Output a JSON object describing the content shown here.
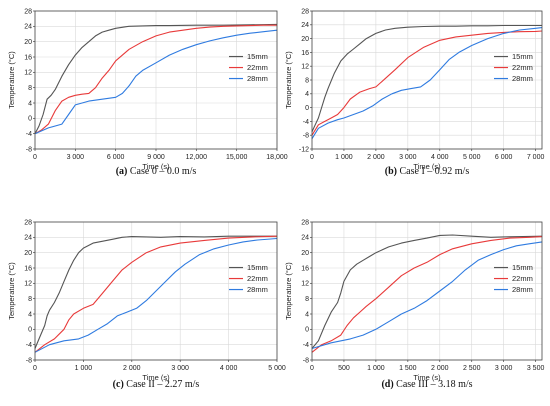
{
  "chart_data": [
    {
      "type": "line",
      "caption_label": "(a)",
      "caption_text": "Case 0 – 0.0 m/s",
      "xlabel": "Time (s)",
      "ylabel": "Temperature (°C)",
      "xlim": [
        0,
        18000
      ],
      "ylim": [
        -8,
        28
      ],
      "xticks": [
        0,
        3000,
        6000,
        9000,
        12000,
        15000,
        18000
      ],
      "xtick_labels": [
        "0",
        "3 000",
        "6 000",
        "9 000",
        "12,000",
        "15,000",
        "18,000"
      ],
      "yticks": [
        -8,
        -4,
        0,
        4,
        8,
        12,
        16,
        20,
        24,
        28
      ],
      "ytick_labels": [
        "-8",
        "-4",
        "0",
        "4",
        "8",
        "12",
        "16",
        "20",
        "24",
        "28"
      ],
      "grid": true,
      "legend_position": "right-middle",
      "series": [
        {
          "name": "15mm",
          "color": "#555555",
          "x": [
            0,
            300,
            600,
            900,
            1200,
            1500,
            2000,
            2500,
            3000,
            3500,
            4000,
            4500,
            5000,
            5500,
            6000,
            7000,
            8000,
            9000,
            10000,
            12000,
            14000,
            16000,
            18000
          ],
          "y": [
            -4,
            -2,
            1,
            5,
            6,
            7.5,
            11,
            14,
            16.5,
            18.5,
            20,
            21.5,
            22.5,
            23,
            23.5,
            24,
            24.1,
            24.2,
            24.2,
            24.3,
            24.3,
            24.4,
            24.5
          ]
        },
        {
          "name": "22mm",
          "color": "#e83a3a",
          "x": [
            0,
            500,
            1000,
            1500,
            2000,
            2500,
            3000,
            3500,
            4000,
            4500,
            5000,
            5500,
            6000,
            7000,
            8000,
            9000,
            10000,
            11000,
            12000,
            13000,
            14000,
            15000,
            16000,
            17000,
            18000
          ],
          "y": [
            -4,
            -3,
            -1.5,
            2,
            4.5,
            5.5,
            6,
            6.3,
            6.5,
            8,
            10.5,
            12.5,
            15,
            18,
            20,
            21.5,
            22.5,
            23,
            23.5,
            23.8,
            24,
            24.1,
            24.2,
            24.3,
            24.3
          ]
        },
        {
          "name": "28mm",
          "color": "#2f7be0",
          "x": [
            0,
            1000,
            2000,
            2500,
            3000,
            3500,
            4000,
            5000,
            6000,
            6500,
            7000,
            7500,
            8000,
            9000,
            10000,
            11000,
            12000,
            13000,
            14000,
            15000,
            16000,
            17000,
            18000
          ],
          "y": [
            -4,
            -2.5,
            -1.5,
            1,
            3.5,
            4,
            4.5,
            5,
            5.5,
            6.5,
            8.5,
            11,
            12.5,
            14.5,
            16.5,
            18,
            19.2,
            20.2,
            21,
            21.7,
            22.2,
            22.6,
            23
          ]
        }
      ]
    },
    {
      "type": "line",
      "caption_label": "(b)",
      "caption_text": "Case I – 0.92 m/s",
      "xlabel": "Time (s)",
      "ylabel": "Temperature (°C)",
      "xlim": [
        0,
        7200
      ],
      "ylim": [
        -12,
        28
      ],
      "xticks": [
        0,
        1000,
        2000,
        3000,
        4000,
        5000,
        6000,
        7000
      ],
      "xtick_labels": [
        "0",
        "1 000",
        "2 000",
        "3 000",
        "4 000",
        "5 000",
        "6 000",
        "7 000"
      ],
      "yticks": [
        -12,
        -8,
        -4,
        0,
        4,
        8,
        12,
        16,
        20,
        24,
        28
      ],
      "ytick_labels": [
        "-12",
        "-8",
        "-4",
        "0",
        "4",
        "8",
        "12",
        "16",
        "20",
        "24",
        "28"
      ],
      "grid": true,
      "legend_position": "right-middle",
      "series": [
        {
          "name": "15mm",
          "color": "#555555",
          "x": [
            0,
            100,
            200,
            300,
            400,
            500,
            700,
            900,
            1100,
            1300,
            1500,
            1700,
            2000,
            2300,
            2600,
            3000,
            3500,
            4000,
            4500,
            5000,
            5500,
            6000,
            6500,
            7000,
            7200
          ],
          "y": [
            -7,
            -5,
            -3,
            0,
            3,
            5.5,
            10,
            13.5,
            15.5,
            17,
            18.5,
            20,
            21.5,
            22.5,
            23,
            23.3,
            23.5,
            23.6,
            23.6,
            23.7,
            23.7,
            23.8,
            23.8,
            23.8,
            23.8
          ]
        },
        {
          "name": "22mm",
          "color": "#e83a3a",
          "x": [
            0,
            200,
            400,
            600,
            800,
            1000,
            1200,
            1500,
            1800,
            2000,
            2300,
            2600,
            3000,
            3500,
            4000,
            4500,
            5000,
            5500,
            6000,
            6500,
            7000,
            7200
          ],
          "y": [
            -8,
            -5,
            -4,
            -3,
            -2,
            0,
            2.5,
            4.5,
            5.5,
            6,
            8.5,
            11,
            14.5,
            17.5,
            19.5,
            20.5,
            21,
            21.5,
            21.8,
            22,
            22.1,
            22.2
          ]
        },
        {
          "name": "28mm",
          "color": "#2f7be0",
          "x": [
            0,
            200,
            500,
            800,
            1000,
            1300,
            1600,
            1900,
            2200,
            2500,
            2800,
            3100,
            3400,
            3700,
            4000,
            4300,
            4600,
            5000,
            5500,
            6000,
            6500,
            7000,
            7200
          ],
          "y": [
            -9,
            -6,
            -4.5,
            -3.5,
            -3,
            -2,
            -1,
            0.5,
            2.5,
            4,
            5,
            5.5,
            6,
            8,
            11,
            14,
            16,
            18,
            20,
            21.5,
            22.5,
            23,
            23.2
          ]
        }
      ]
    },
    {
      "type": "line",
      "caption_label": "(c)",
      "caption_text": "Case II – 2.27 m/s",
      "xlabel": "Time (s)",
      "ylabel": "Temperature (°C)",
      "xlim": [
        0,
        5000
      ],
      "ylim": [
        -8,
        28
      ],
      "xticks": [
        0,
        1000,
        2000,
        3000,
        4000,
        5000
      ],
      "xtick_labels": [
        "0",
        "1 000",
        "2 000",
        "3 000",
        "4 000",
        "5 000"
      ],
      "yticks": [
        -8,
        -4,
        0,
        4,
        8,
        12,
        16,
        20,
        24,
        28
      ],
      "ytick_labels": [
        "-8",
        "-4",
        "0",
        "4",
        "8",
        "12",
        "16",
        "20",
        "24",
        "28"
      ],
      "grid": true,
      "legend_position": "right-middle",
      "series": [
        {
          "name": "15mm",
          "color": "#555555",
          "x": [
            0,
            100,
            200,
            250,
            300,
            400,
            500,
            600,
            700,
            800,
            900,
            1000,
            1200,
            1400,
            1600,
            1800,
            2000,
            2300,
            2600,
            3000,
            3500,
            4000,
            4500,
            5000
          ],
          "y": [
            -5,
            -2,
            1,
            3.5,
            5,
            7,
            9.5,
            12.5,
            15.5,
            18,
            20,
            21.2,
            22.5,
            23,
            23.5,
            24,
            24.2,
            24.1,
            24,
            24.2,
            24.1,
            24.3,
            24.3,
            24.3
          ]
        },
        {
          "name": "22mm",
          "color": "#e83a3a",
          "x": [
            0,
            200,
            400,
            600,
            700,
            800,
            1000,
            1200,
            1400,
            1600,
            1800,
            2000,
            2300,
            2600,
            3000,
            3500,
            4000,
            4500,
            5000
          ],
          "y": [
            -6,
            -4,
            -2.5,
            0,
            2.5,
            4,
            5.5,
            6.5,
            9.5,
            12.5,
            15.5,
            17.5,
            20,
            21.5,
            22.5,
            23.2,
            23.8,
            24.1,
            24.3
          ]
        },
        {
          "name": "28mm",
          "color": "#2f7be0",
          "x": [
            0,
            300,
            600,
            900,
            1100,
            1300,
            1500,
            1700,
            1900,
            2100,
            2300,
            2500,
            2700,
            2900,
            3100,
            3400,
            3700,
            4000,
            4300,
            4600,
            5000
          ],
          "y": [
            -6,
            -4,
            -3,
            -2.5,
            -1.5,
            0,
            1.5,
            3.5,
            4.5,
            5.5,
            7.5,
            10,
            12.5,
            15,
            17,
            19.5,
            21,
            22,
            22.8,
            23.3,
            23.7
          ]
        }
      ]
    },
    {
      "type": "line",
      "caption_label": "(d)",
      "caption_text": "Case III – 3.18 m/s",
      "xlabel": "Time (s)",
      "ylabel": "Temperature (°C)",
      "xlim": [
        0,
        3600
      ],
      "ylim": [
        -8,
        28
      ],
      "xticks": [
        0,
        500,
        1000,
        1500,
        2000,
        2500,
        3000,
        3500
      ],
      "xtick_labels": [
        "0",
        "500",
        "1 000",
        "1 500",
        "2 000",
        "2 500",
        "3 000",
        "3 500"
      ],
      "yticks": [
        -8,
        -4,
        0,
        4,
        8,
        12,
        16,
        20,
        24,
        28
      ],
      "ytick_labels": [
        "-8",
        "-4",
        "0",
        "4",
        "8",
        "12",
        "16",
        "20",
        "24",
        "28"
      ],
      "grid": true,
      "legend_position": "right-middle",
      "series": [
        {
          "name": "15mm",
          "color": "#555555",
          "x": [
            0,
            100,
            200,
            300,
            400,
            450,
            500,
            600,
            700,
            800,
            900,
            1000,
            1200,
            1400,
            1600,
            1800,
            2000,
            2200,
            2500,
            2800,
            3000,
            3300,
            3600
          ],
          "y": [
            -5,
            -3,
            1,
            4.5,
            7,
            9.5,
            12.5,
            15.5,
            17,
            18,
            19,
            20,
            21.5,
            22.5,
            23.2,
            23.8,
            24.5,
            24.6,
            24.3,
            24,
            24.1,
            24.2,
            24.3
          ]
        },
        {
          "name": "22mm",
          "color": "#e83a3a",
          "x": [
            0,
            150,
            300,
            450,
            550,
            650,
            750,
            850,
            1000,
            1200,
            1400,
            1600,
            1800,
            2000,
            2200,
            2500,
            2800,
            3100,
            3400,
            3600
          ],
          "y": [
            -6,
            -4,
            -3,
            -1.5,
            1,
            3,
            4.5,
            6,
            8,
            11,
            14,
            16,
            17.5,
            19.5,
            21,
            22.3,
            23.2,
            23.8,
            24,
            24.2
          ]
        },
        {
          "name": "28mm",
          "color": "#2f7be0",
          "x": [
            0,
            300,
            600,
            800,
            1000,
            1200,
            1400,
            1600,
            1800,
            2000,
            2200,
            2400,
            2600,
            2800,
            3000,
            3200,
            3400,
            3600
          ],
          "y": [
            -5,
            -3.5,
            -2.5,
            -1.5,
            0,
            2,
            4,
            5.5,
            7.5,
            10,
            12.5,
            15.5,
            18,
            19.5,
            20.8,
            21.8,
            22.3,
            22.8
          ]
        }
      ]
    }
  ]
}
